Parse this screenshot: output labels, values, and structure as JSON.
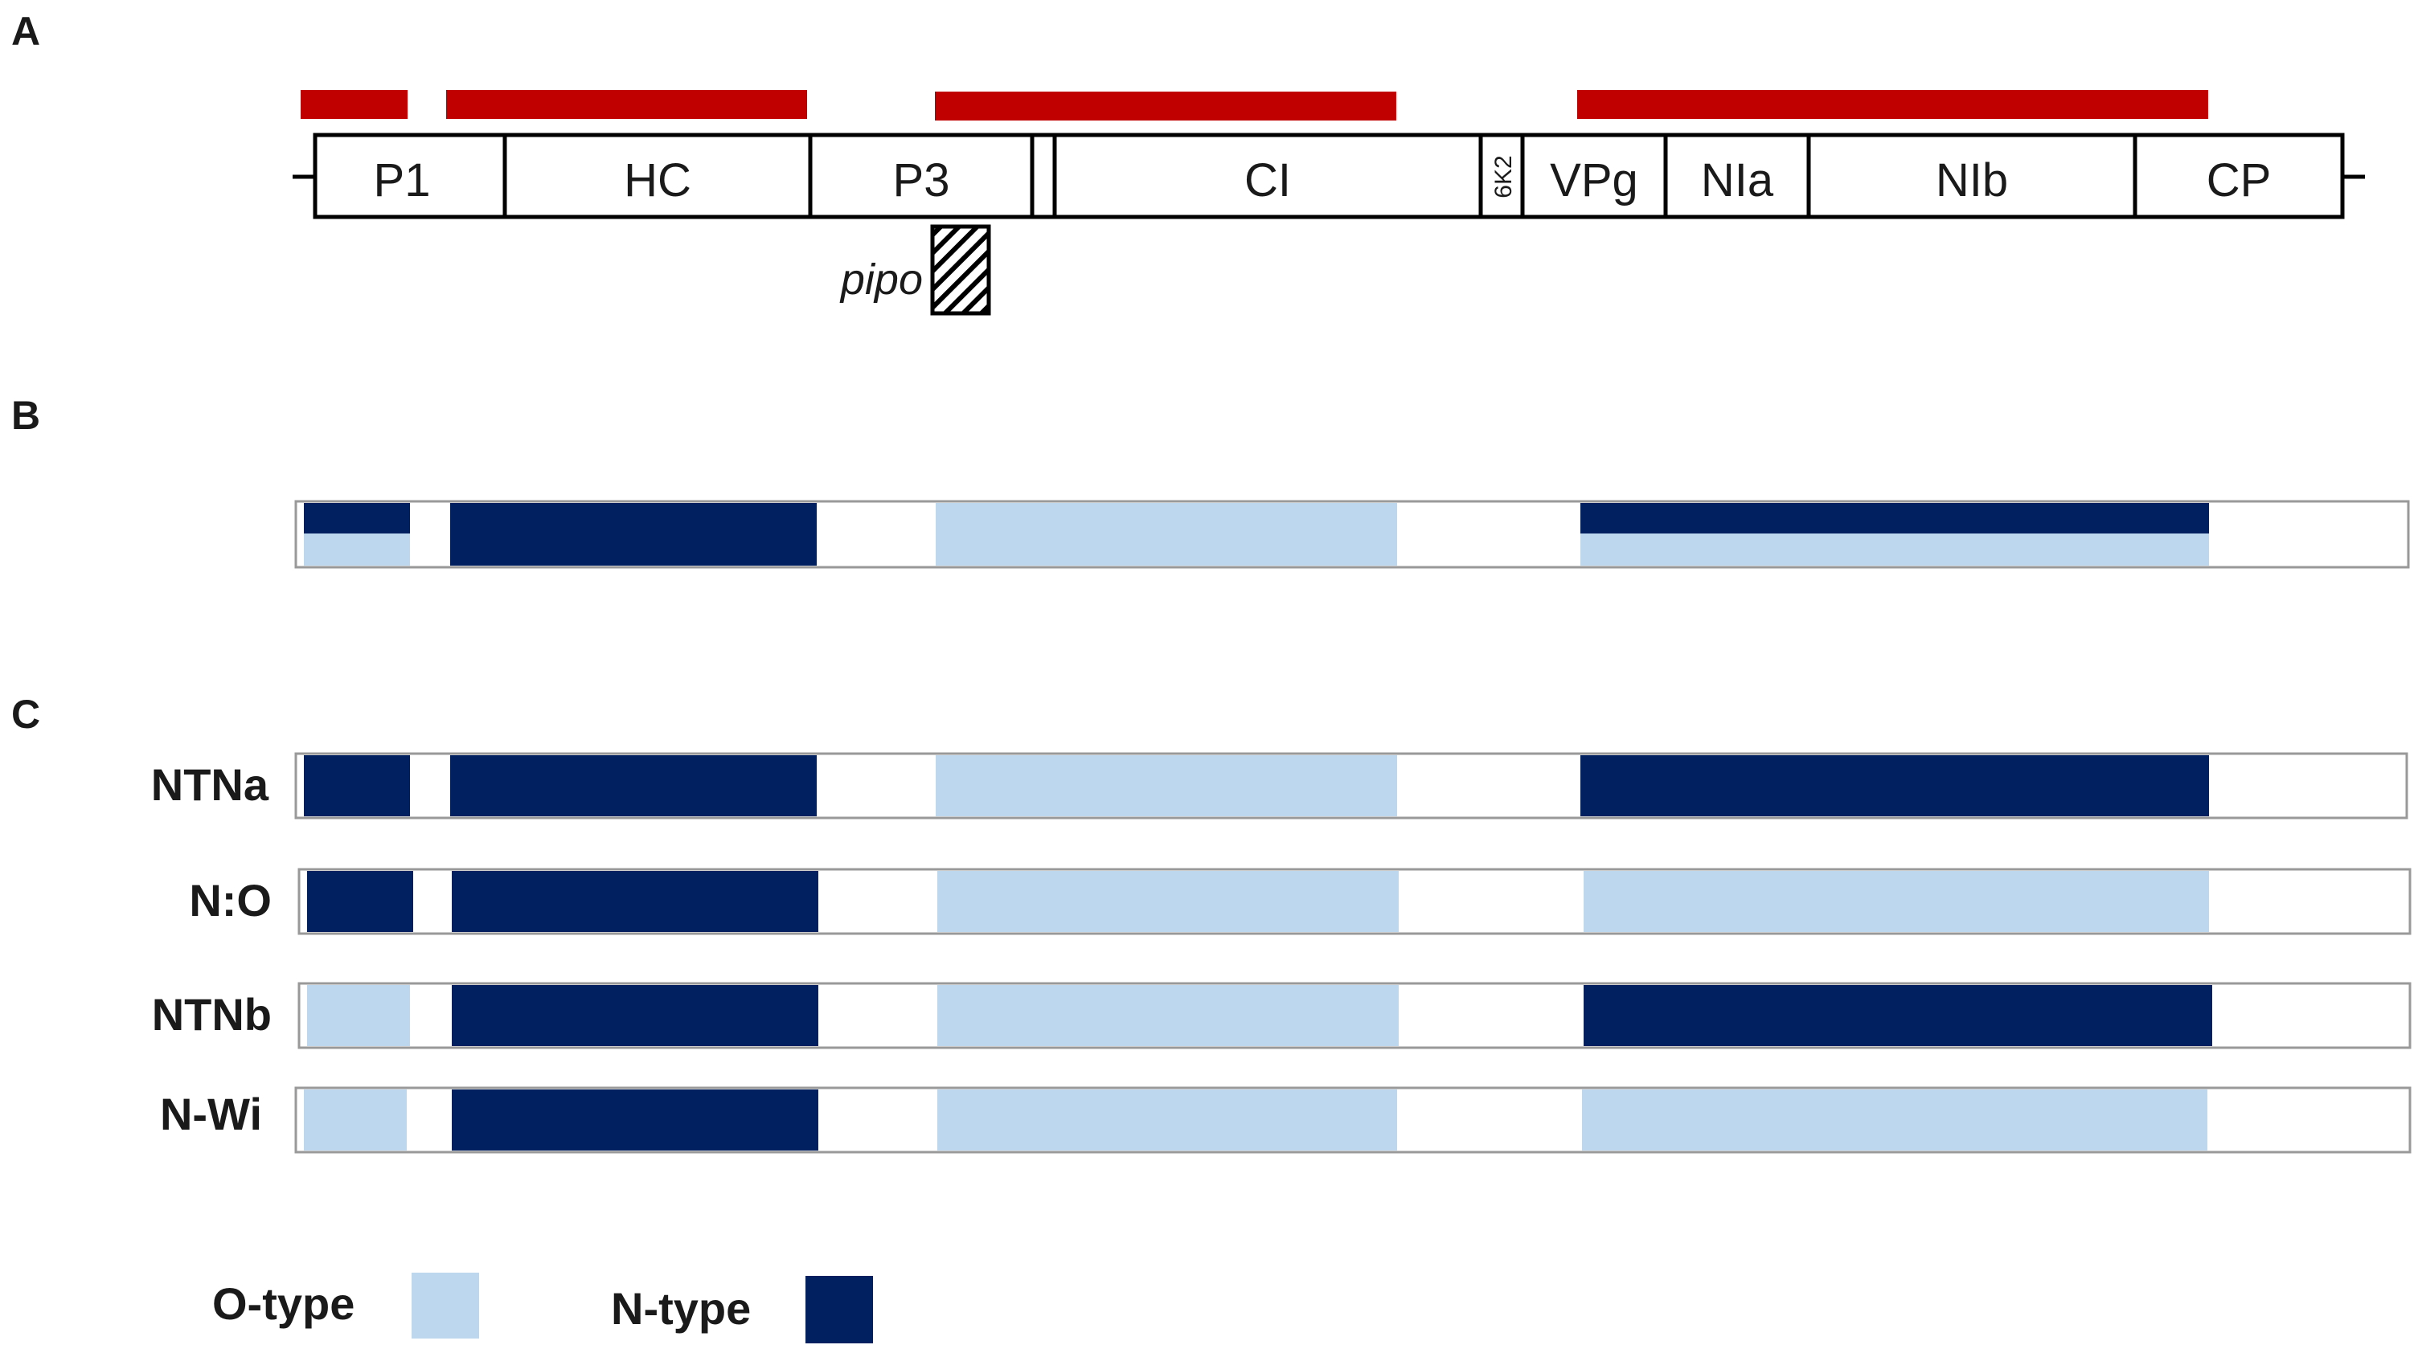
{
  "panels": {
    "a": "A",
    "b": "B",
    "c": "C"
  },
  "genome": {
    "genes": [
      "P1",
      "HC",
      "P3",
      "CI",
      "6K2",
      "VPg",
      "NIa",
      "NIb",
      "CP"
    ],
    "pipo": "pipo"
  },
  "rows": {
    "ntna": "NTNa",
    "no": "N:O",
    "ntnb": "NTNb",
    "nwi": "N-Wi"
  },
  "legend": {
    "o_type": "O-type",
    "n_type": "N-type"
  },
  "colors": {
    "region_bar": "#c00000",
    "o_type": "#bdd7ee",
    "n_type": "#002060",
    "outline": "#000000"
  }
}
